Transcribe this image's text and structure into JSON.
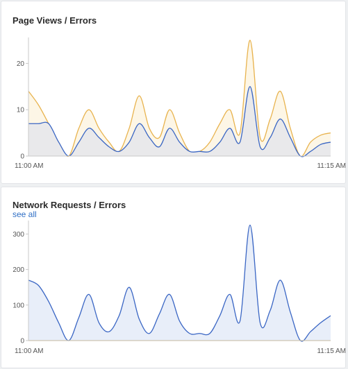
{
  "panels": [
    {
      "title": "Page Views / Errors",
      "chart_data": {
        "type": "area",
        "x_labels": [
          "11:00 AM",
          "11:15 AM"
        ],
        "x": [
          0,
          1,
          2,
          3,
          4,
          5,
          6,
          7,
          8,
          9,
          10,
          11,
          12,
          13,
          14,
          15,
          16,
          17,
          18,
          19,
          20,
          21,
          22,
          23,
          24,
          25,
          26,
          27,
          28,
          29,
          30
        ],
        "ylim": [
          0,
          25
        ],
        "y_ticks": [
          0,
          10,
          20
        ],
        "grid": false,
        "series": [
          {
            "values": [
              14,
              11,
              7,
              3,
              0,
              6,
              10,
              6,
              3,
              1,
              6,
              13,
              6,
              4,
              10,
              5,
              1,
              1,
              3,
              7,
              10,
              5,
              25,
              4,
              8,
              14,
              6,
              0,
              3,
              4.5,
              5
            ],
            "color": "#e8b34e",
            "fill": "#fdf6e6"
          },
          {
            "values": [
              7,
              7,
              7,
              3,
              0,
              3,
              6,
              4,
              2,
              1,
              3,
              7,
              4,
              2,
              6,
              3,
              1,
              1,
              1,
              3,
              6,
              3,
              15,
              2,
              4,
              8,
              4,
              0,
              1,
              2.5,
              3
            ],
            "color": "#3a66c4",
            "fill": "#e9e9eb"
          }
        ]
      }
    },
    {
      "title": "Network Requests / Errors",
      "link": "see all",
      "chart_data": {
        "type": "area",
        "x_labels": [
          "11:00 AM",
          "11:15 AM"
        ],
        "x": [
          0,
          1,
          2,
          3,
          4,
          5,
          6,
          7,
          8,
          9,
          10,
          11,
          12,
          13,
          14,
          15,
          16,
          17,
          18,
          19,
          20,
          21,
          22,
          23,
          24,
          25,
          26,
          27,
          28,
          29,
          30
        ],
        "ylim": [
          0,
          330
        ],
        "y_ticks": [
          0,
          100,
          200,
          300
        ],
        "grid": false,
        "series": [
          {
            "values": [
              170,
              155,
              110,
              50,
              0,
              65,
              130,
              50,
              25,
              70,
              150,
              60,
              20,
              75,
              130,
              55,
              20,
              20,
              20,
              70,
              130,
              55,
              325,
              50,
              85,
              170,
              80,
              0,
              25,
              50,
              70
            ],
            "color": "#3a66c4",
            "fill": "#e8eef9"
          },
          {
            "values": [
              0,
              0,
              0,
              0,
              0,
              0,
              0,
              0,
              0,
              0,
              0,
              0,
              0,
              0,
              0,
              0,
              0,
              0,
              0,
              0,
              0,
              0,
              0,
              0,
              0,
              0,
              0,
              0,
              0,
              0,
              0
            ],
            "color": "#e0b34e",
            "fill": "none"
          }
        ]
      }
    }
  ]
}
